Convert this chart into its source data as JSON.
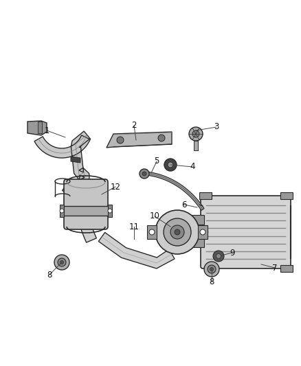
{
  "bg_color": "#ffffff",
  "line_color": "#2a2a2a",
  "gray_light": "#c8c8c8",
  "gray_mid": "#999999",
  "gray_dark": "#666666",
  "figsize": [
    4.38,
    5.33
  ],
  "dpi": 100
}
